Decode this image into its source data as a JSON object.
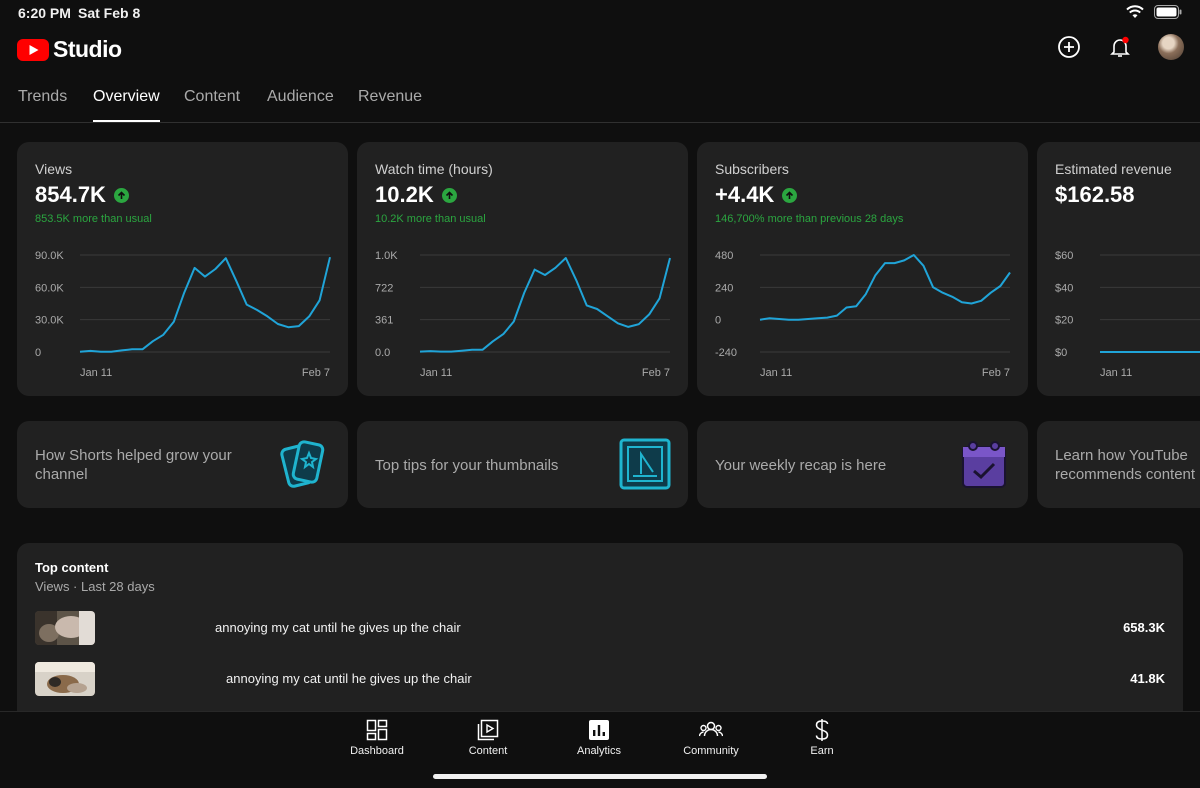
{
  "status": {
    "time": "6:20 PM",
    "date": "Sat Feb 8"
  },
  "app": {
    "title": "Studio"
  },
  "colors": {
    "accent": "#20a4d8",
    "positive": "#2ba640",
    "brand": "#ff0000",
    "background": "#0f0f0f",
    "card": "#212121"
  },
  "tabs": [
    {
      "label": "Trends",
      "active": false
    },
    {
      "label": "Overview",
      "active": true
    },
    {
      "label": "Content",
      "active": false
    },
    {
      "label": "Audience",
      "active": false
    },
    {
      "label": "Revenue",
      "active": false
    }
  ],
  "metrics": [
    {
      "label": "Views",
      "value": "854.7K",
      "delta": "853.5K more than usual"
    },
    {
      "label": "Watch time (hours)",
      "value": "10.2K",
      "delta": "10.2K more than usual"
    },
    {
      "label": "Subscribers",
      "value": "+4.4K",
      "delta": "146,700% more than previous 28 days"
    },
    {
      "label": "Estimated revenue",
      "value": "$162.58",
      "delta": ""
    }
  ],
  "chart_data": [
    {
      "type": "line",
      "title": "Views",
      "y_ticks": [
        "90.0K",
        "60.0K",
        "30.0K",
        "0"
      ],
      "ylim": [
        0,
        90000
      ],
      "x_labels": [
        "Jan 11",
        "Feb 7"
      ],
      "values": [
        300,
        1000,
        300,
        300,
        1500,
        2500,
        2500,
        10000,
        16000,
        28000,
        55000,
        78000,
        70000,
        77000,
        87000,
        66000,
        44000,
        39000,
        33000,
        26000,
        23000,
        24000,
        33000,
        48000,
        88000
      ]
    },
    {
      "type": "line",
      "title": "Watch time (hours)",
      "y_ticks": [
        "1.0K",
        "722",
        "361",
        "0.0"
      ],
      "ylim": [
        0,
        1083
      ],
      "x_labels": [
        "Jan 11",
        "Feb 7"
      ],
      "values": [
        5,
        10,
        5,
        5,
        15,
        25,
        25,
        120,
        200,
        340,
        660,
        920,
        860,
        940,
        1050,
        800,
        520,
        480,
        400,
        320,
        280,
        310,
        420,
        600,
        1050
      ]
    },
    {
      "type": "line",
      "title": "Subscribers",
      "y_ticks": [
        "480",
        "240",
        "0",
        "-240"
      ],
      "ylim": [
        -240,
        480
      ],
      "x_labels": [
        "Jan 11",
        "Feb 7"
      ],
      "values": [
        0,
        10,
        5,
        0,
        0,
        5,
        10,
        15,
        30,
        90,
        100,
        190,
        330,
        420,
        420,
        440,
        480,
        400,
        240,
        200,
        170,
        130,
        120,
        140,
        200,
        250,
        350
      ]
    },
    {
      "type": "line",
      "title": "Estimated revenue",
      "y_ticks": [
        "$60",
        "$40",
        "$20",
        "$0"
      ],
      "ylim": [
        0,
        60
      ],
      "x_labels": [
        "Jan 11"
      ],
      "values": [
        0,
        0,
        0,
        0,
        0,
        0,
        0
      ]
    }
  ],
  "tips": [
    {
      "line1": "How Shorts helped grow your",
      "line2": "channel"
    },
    {
      "line1": "Top tips for your thumbnails",
      "line2": ""
    },
    {
      "line1": "Your weekly recap is here",
      "line2": ""
    },
    {
      "line1": "Learn how YouTube",
      "line2": "recommends content"
    }
  ],
  "top_content": {
    "title": "Top content",
    "subtitle": "Views · Last 28 days",
    "rows": [
      {
        "title": "annoying my cat until he gives up the chair",
        "value": "658.3K"
      },
      {
        "title": "annoying my cat until he gives up the chair",
        "value": "41.8K"
      }
    ]
  },
  "nav": [
    {
      "label": "Dashboard",
      "icon": "dashboard-icon"
    },
    {
      "label": "Content",
      "icon": "content-icon"
    },
    {
      "label": "Analytics",
      "icon": "analytics-icon"
    },
    {
      "label": "Community",
      "icon": "community-icon"
    },
    {
      "label": "Earn",
      "icon": "earn-icon"
    }
  ]
}
